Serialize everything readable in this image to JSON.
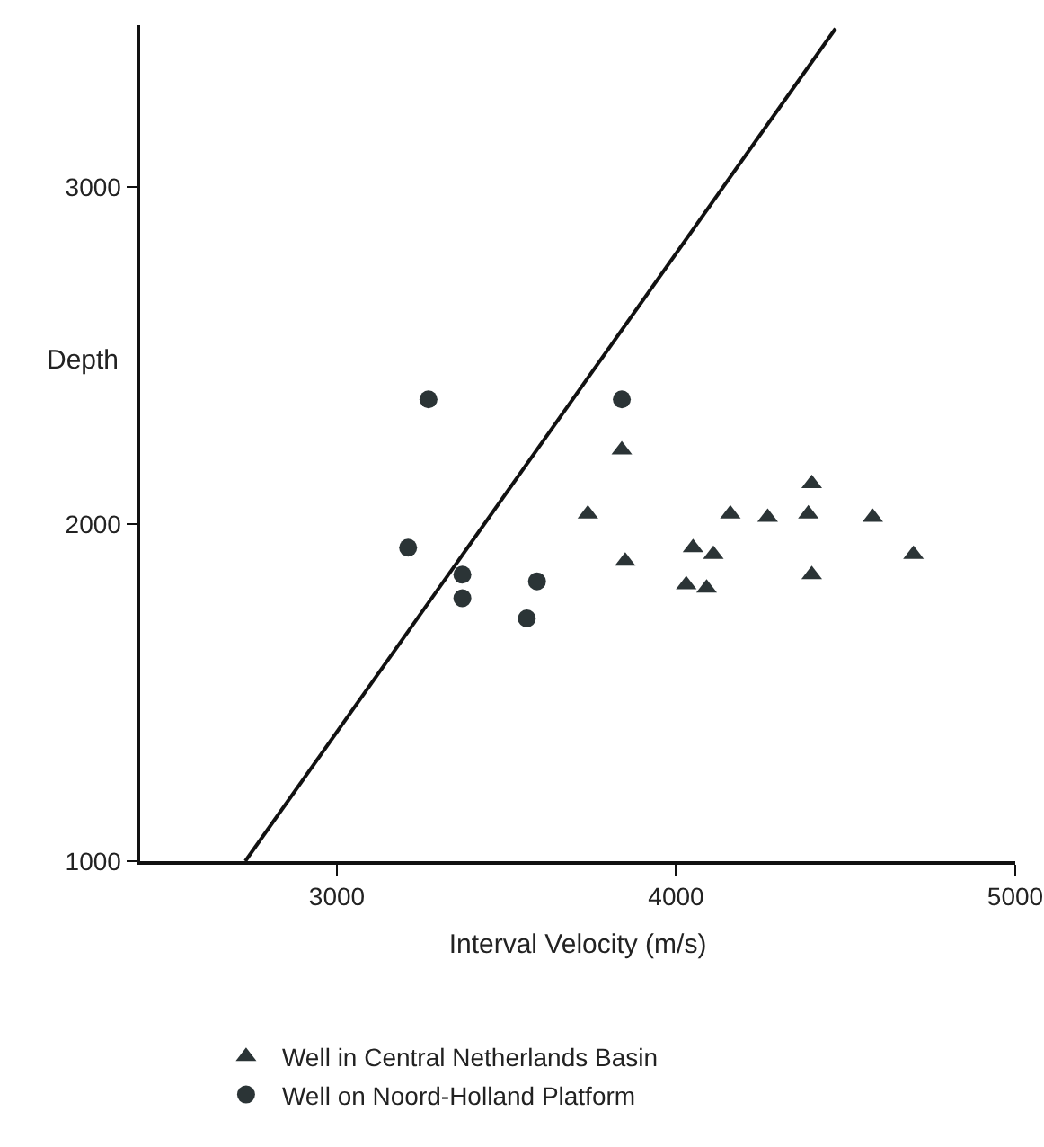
{
  "chart_data": {
    "type": "scatter",
    "xlabel": "Interval Velocity (m/s)",
    "ylabel": "Depth",
    "xlim": [
      2420,
      5000
    ],
    "xticks": [
      3000,
      4000,
      5000
    ],
    "ylim": [
      1000,
      3480
    ],
    "yticks": [
      1000,
      2000,
      3000
    ],
    "grid": false,
    "legend": "bottom left",
    "series": [
      {
        "name": "Well in Central Netherlands Basin",
        "color": "#2b3436",
        "marker": "triangle",
        "x": [
          3840,
          3740,
          3850,
          4050,
          4110,
          4030,
          4090,
          4160,
          4270,
          4400,
          4390,
          4400,
          4580,
          4700
        ],
        "values": [
          2220,
          2030,
          1890,
          1930,
          1910,
          1820,
          1810,
          2030,
          2020,
          2120,
          2030,
          1850,
          2020,
          1910
        ]
      },
      {
        "name": "Well on Noord-Holland Platform",
        "color": "#2b3436",
        "marker": "circle",
        "x": [
          3270,
          3840,
          3210,
          3370,
          3370,
          3590,
          3560
        ],
        "values": [
          2370,
          2370,
          1930,
          1850,
          1780,
          1830,
          1720
        ]
      },
      {
        "type": "line",
        "color": "#111111",
        "marker": "none",
        "line_style": "solid",
        "x": [
          2730,
          4470
        ],
        "values": [
          1000,
          3470
        ]
      }
    ]
  }
}
